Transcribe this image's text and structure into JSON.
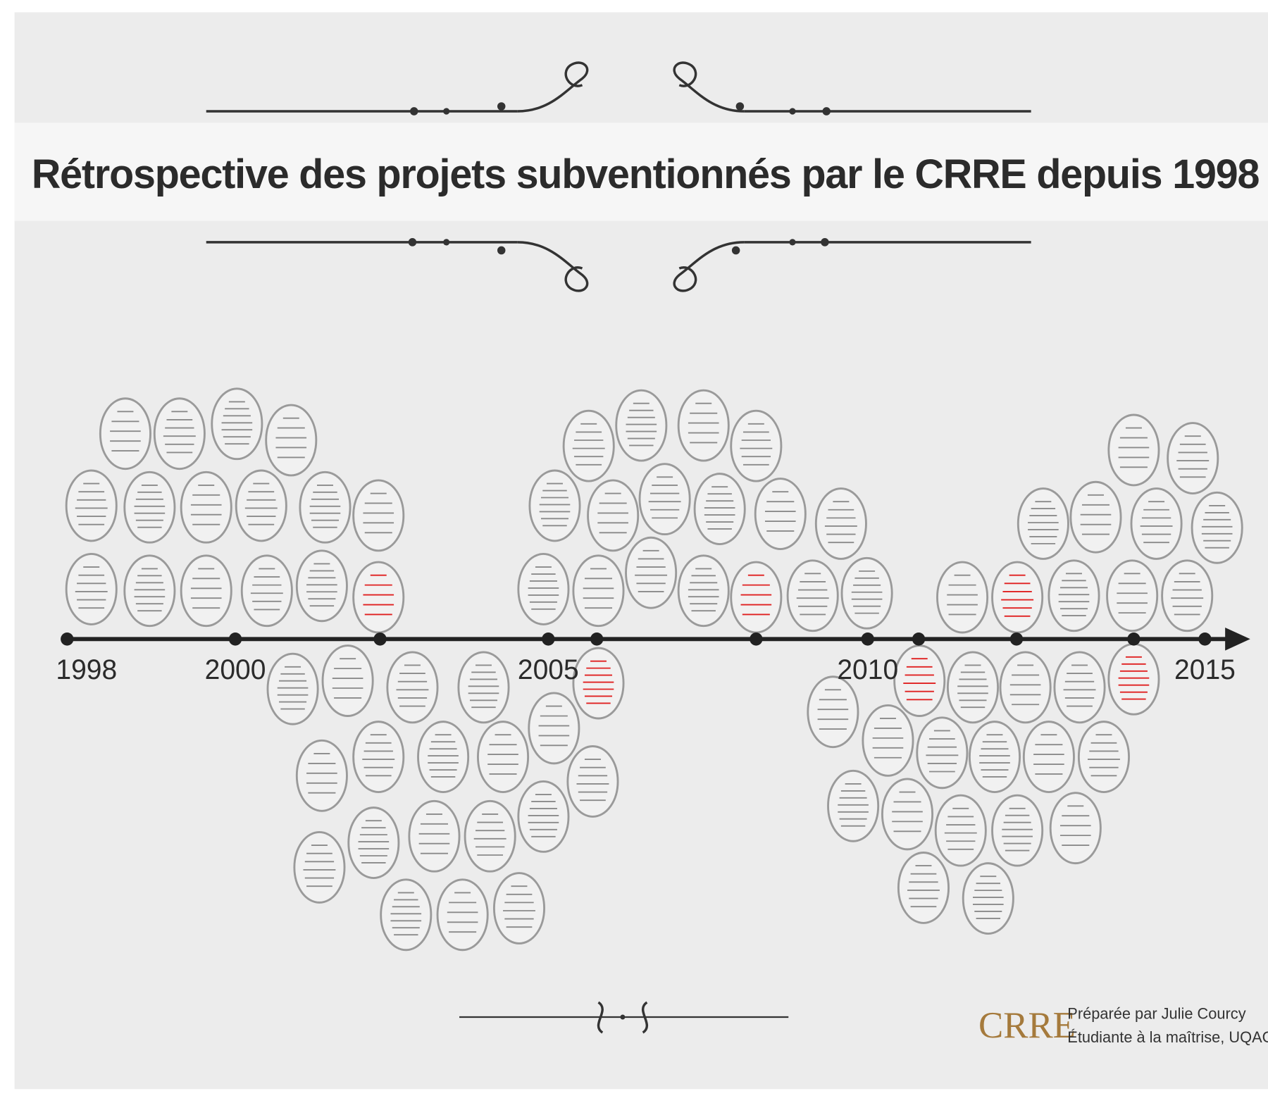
{
  "header": {
    "title": "Rétrospective des projets subventionnés par le CRRE depuis 1998"
  },
  "timeline": {
    "years": [
      "1998",
      "2000",
      "2005",
      "2010",
      "2015"
    ]
  },
  "footer": {
    "logo": "CRRE",
    "credit": [
      "Préparée par Julie Courcy",
      "Étudiante à la maîtrise, UQAC"
    ]
  }
}
